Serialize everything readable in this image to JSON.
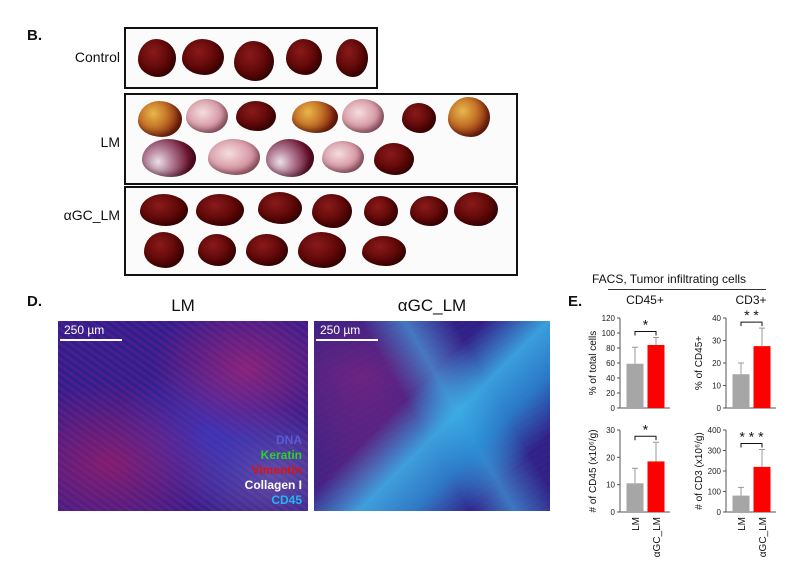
{
  "panel_b": {
    "label": "B.",
    "rows": [
      {
        "label": "Control"
      },
      {
        "label": "LM"
      },
      {
        "label": "αGC_LM"
      }
    ]
  },
  "panel_d": {
    "label": "D.",
    "images": [
      {
        "title": "LM",
        "scale": "250 µm"
      },
      {
        "title": "αGC_LM",
        "scale": "250 µm"
      }
    ],
    "legend": [
      {
        "text": "DNA",
        "color": "#5b5bd6"
      },
      {
        "text": "Keratin",
        "color": "#2bd12b"
      },
      {
        "text": "Vimentin",
        "color": "#e01010"
      },
      {
        "text": "Collagen I",
        "color": "#ffffff"
      },
      {
        "text": "CD45",
        "color": "#22b7f0"
      }
    ]
  },
  "panel_e": {
    "label": "E.",
    "header": "FACS,  Tumor infiltrating cells"
  },
  "chart_data": [
    {
      "type": "bar",
      "title": "CD45+",
      "ylabel": "% of total cells",
      "categories": [
        "LM",
        "αGC_LM"
      ],
      "values": [
        59,
        84
      ],
      "errors": [
        22,
        10
      ],
      "colors": [
        "#a6a6a6",
        "#ff0000"
      ],
      "ylim": [
        0,
        120
      ],
      "yticks": [
        0,
        20,
        40,
        60,
        80,
        100,
        120
      ],
      "significance": "*"
    },
    {
      "type": "bar",
      "title": "CD3+",
      "ylabel": "% of CD45+",
      "categories": [
        "LM",
        "αGC_LM"
      ],
      "values": [
        15,
        27.5
      ],
      "errors": [
        5,
        8
      ],
      "colors": [
        "#a6a6a6",
        "#ff0000"
      ],
      "ylim": [
        0,
        40
      ],
      "yticks": [
        0,
        10,
        20,
        30,
        40
      ],
      "significance": "* *"
    },
    {
      "type": "bar",
      "title": "",
      "ylabel": "# of CD45 (x10⁶/g)",
      "categories": [
        "LM",
        "αGC_LM"
      ],
      "values": [
        10.5,
        18.5
      ],
      "errors": [
        5.5,
        7
      ],
      "colors": [
        "#a6a6a6",
        "#ff0000"
      ],
      "ylim": [
        0,
        30
      ],
      "yticks": [
        0,
        10,
        20,
        30
      ],
      "significance": "*"
    },
    {
      "type": "bar",
      "title": "",
      "ylabel": "# of CD3 (x10⁶/g)",
      "categories": [
        "LM",
        "αGC_LM"
      ],
      "values": [
        80,
        220
      ],
      "errors": [
        40,
        85
      ],
      "colors": [
        "#a6a6a6",
        "#ff0000"
      ],
      "ylim": [
        0,
        400
      ],
      "yticks": [
        0,
        100,
        200,
        300,
        400
      ],
      "significance": "* * *"
    }
  ]
}
